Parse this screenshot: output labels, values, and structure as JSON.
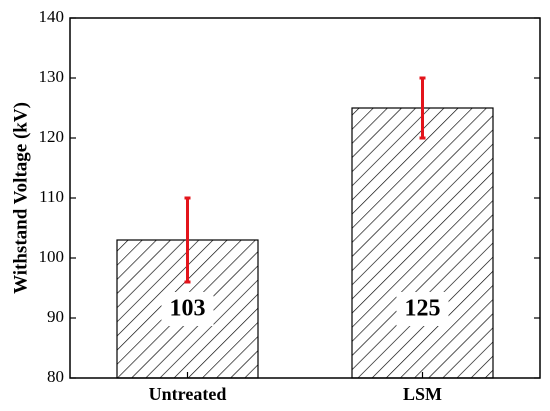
{
  "chart_data": {
    "type": "bar",
    "categories": [
      "Untreated",
      "LSM"
    ],
    "values": [
      103,
      125
    ],
    "errors": [
      7,
      5
    ],
    "color": "#000000",
    "error_color": "#e3141b",
    "ylabel": "Withstand Voltage (kV)",
    "ylim": [
      80,
      140
    ],
    "yticks": [
      80,
      90,
      100,
      110,
      120,
      130,
      140
    ],
    "data_labels": true
  }
}
